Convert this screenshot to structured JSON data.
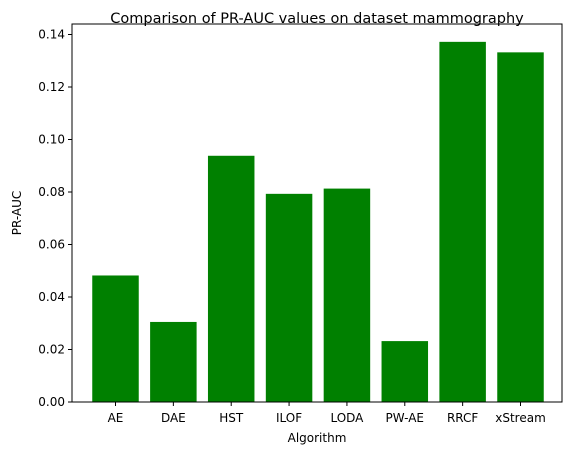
{
  "chart_data": {
    "type": "bar",
    "title": "Comparison of PR-AUC values on dataset mammography",
    "xlabel": "Algorithm",
    "ylabel": "PR-AUC",
    "categories": [
      "AE",
      "DAE",
      "HST",
      "ILOF",
      "LODA",
      "PW-AE",
      "RRCF",
      "xStream"
    ],
    "values": [
      0.0482,
      0.0305,
      0.0938,
      0.0793,
      0.0813,
      0.0232,
      0.1372,
      0.1332
    ],
    "ylim": [
      0,
      0.144
    ],
    "yticks": [
      0.0,
      0.02,
      0.04,
      0.06,
      0.08,
      0.1,
      0.12,
      0.14
    ],
    "ytick_labels": [
      "0.00",
      "0.02",
      "0.04",
      "0.06",
      "0.08",
      "0.10",
      "0.12",
      "0.14"
    ],
    "bar_color": "#008000",
    "grid": false,
    "legend": "none"
  }
}
